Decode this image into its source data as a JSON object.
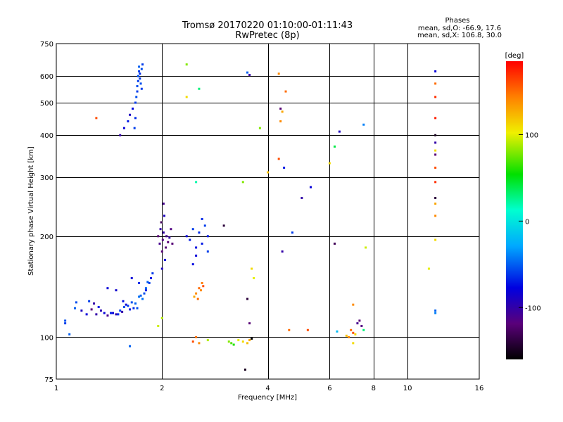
{
  "chart_data": {
    "type": "scatter",
    "title": "Tromsø 20170220 01:10:00-01:11:43",
    "subtitle": "RwPretec (8p)",
    "xlabel": "Frequency [MHz]",
    "ylabel": "Stationary phase Virtual Height [km]",
    "x_scale": "log",
    "y_scale": "log",
    "xlim": [
      1,
      16
    ],
    "ylim": [
      75,
      750
    ],
    "x_ticks": [
      1,
      2,
      4,
      6,
      8,
      10,
      16
    ],
    "x_tick_labels": [
      "1",
      "2",
      "4",
      "6",
      "8",
      "10",
      "16"
    ],
    "y_ticks": [
      75,
      100,
      200,
      300,
      400,
      500,
      600,
      750
    ],
    "y_tick_labels": [
      "75",
      "100",
      "200",
      "300",
      "400",
      "500",
      "600",
      "750"
    ],
    "grid": true,
    "info": {
      "heading": "Phases",
      "line1": "mean, sd,O: -66.9, 17.6",
      "line2": "mean, sd,X: 106.8, 30.0"
    },
    "colorbar": {
      "label": "[deg]",
      "ticks": [
        100,
        0,
        -100
      ],
      "tick_labels": [
        "100",
        "0",
        "-100"
      ],
      "range": [
        -160,
        185
      ]
    },
    "series": [
      {
        "points": [
          [
            1.06,
            110,
            -60
          ],
          [
            1.06,
            112,
            -55
          ],
          [
            1.09,
            102,
            -50
          ],
          [
            1.13,
            122,
            -50
          ],
          [
            1.14,
            127,
            -55
          ],
          [
            1.18,
            120,
            -90
          ],
          [
            1.22,
            117,
            -80
          ],
          [
            1.24,
            128,
            -60
          ],
          [
            1.26,
            121,
            -120
          ],
          [
            1.28,
            126,
            -100
          ],
          [
            1.3,
            117,
            -100
          ],
          [
            1.32,
            123,
            -70
          ],
          [
            1.34,
            120,
            -95
          ],
          [
            1.37,
            118,
            -80
          ],
          [
            1.4,
            116,
            -110
          ],
          [
            1.43,
            118,
            -70
          ],
          [
            1.45,
            118,
            -80
          ],
          [
            1.48,
            117,
            -100
          ],
          [
            1.5,
            117,
            -65
          ],
          [
            1.52,
            120,
            -60
          ],
          [
            1.54,
            119,
            -100
          ],
          [
            1.56,
            123,
            -55
          ],
          [
            1.58,
            125,
            -80
          ],
          [
            1.6,
            124,
            -60
          ],
          [
            1.62,
            121,
            -70
          ],
          [
            1.64,
            127,
            -55
          ],
          [
            1.66,
            122,
            -65
          ],
          [
            1.68,
            126,
            -50
          ],
          [
            1.7,
            122,
            -55
          ],
          [
            1.72,
            132,
            -45
          ],
          [
            1.74,
            133,
            -50
          ],
          [
            1.76,
            130,
            -45
          ],
          [
            1.78,
            135,
            -55
          ],
          [
            1.8,
            140,
            -50
          ],
          [
            1.82,
            146,
            -50
          ],
          [
            1.84,
            145,
            -60
          ],
          [
            1.86,
            150,
            -70
          ],
          [
            1.88,
            155,
            -60
          ],
          [
            1.64,
            150,
            -80
          ],
          [
            1.72,
            145,
            -65
          ],
          [
            1.8,
            138,
            -70
          ],
          [
            1.4,
            140,
            -80
          ],
          [
            1.48,
            138,
            -85
          ],
          [
            1.55,
            128,
            -75
          ],
          [
            1.52,
            400,
            -100
          ],
          [
            1.56,
            420,
            -80
          ],
          [
            1.6,
            440,
            -70
          ],
          [
            1.62,
            460,
            -90
          ],
          [
            1.65,
            480,
            -75
          ],
          [
            1.67,
            420,
            -60
          ],
          [
            1.68,
            450,
            -65
          ],
          [
            1.68,
            500,
            -60
          ],
          [
            1.69,
            520,
            -55
          ],
          [
            1.7,
            540,
            -60
          ],
          [
            1.7,
            560,
            -55
          ],
          [
            1.71,
            580,
            -60
          ],
          [
            1.71,
            600,
            -55
          ],
          [
            1.72,
            620,
            -60
          ],
          [
            1.72,
            640,
            -50
          ],
          [
            1.73,
            610,
            -65
          ],
          [
            1.73,
            590,
            -60
          ],
          [
            1.74,
            570,
            -55
          ],
          [
            1.75,
            550,
            -60
          ],
          [
            1.75,
            630,
            -55
          ],
          [
            1.76,
            650,
            -60
          ],
          [
            1.3,
            450,
            160
          ],
          [
            1.62,
            94,
            -50
          ],
          [
            1.95,
            200,
            -120
          ],
          [
            1.97,
            190,
            -110
          ],
          [
            1.98,
            210,
            -100
          ],
          [
            1.99,
            220,
            -130
          ],
          [
            2.0,
            180,
            -120
          ],
          [
            2.01,
            195,
            -115
          ],
          [
            2.02,
            205,
            -100
          ],
          [
            2.03,
            230,
            -90
          ],
          [
            2.04,
            170,
            -80
          ],
          [
            2.05,
            185,
            -120
          ],
          [
            2.06,
            200,
            -110
          ],
          [
            2.08,
            192,
            -120
          ],
          [
            2.1,
            198,
            -100
          ],
          [
            2.12,
            210,
            -115
          ],
          [
            2.14,
            190,
            -120
          ],
          [
            2.02,
            250,
            -110
          ],
          [
            2.0,
            160,
            -90
          ],
          [
            2.35,
            200,
            -80
          ],
          [
            2.4,
            195,
            -70
          ],
          [
            2.45,
            210,
            -60
          ],
          [
            2.5,
            185,
            -75
          ],
          [
            2.55,
            205,
            -65
          ],
          [
            2.6,
            190,
            -70
          ],
          [
            2.65,
            215,
            -60
          ],
          [
            2.7,
            200,
            -70
          ],
          [
            2.5,
            175,
            -80
          ],
          [
            2.6,
            225,
            -65
          ],
          [
            2.45,
            165,
            -75
          ],
          [
            2.7,
            180,
            -60
          ],
          [
            2.5,
            135,
            140
          ],
          [
            2.55,
            140,
            150
          ],
          [
            2.6,
            145,
            145
          ],
          [
            2.53,
            130,
            150
          ],
          [
            2.58,
            138,
            140
          ],
          [
            2.62,
            142,
            160
          ],
          [
            2.47,
            132,
            130
          ],
          [
            2.0,
            114,
            90
          ],
          [
            1.95,
            108,
            95
          ],
          [
            2.35,
            650,
            80
          ],
          [
            2.35,
            520,
            110
          ],
          [
            2.55,
            550,
            30
          ],
          [
            2.5,
            290,
            20
          ],
          [
            3.0,
            215,
            -140
          ],
          [
            2.5,
            100,
            150
          ],
          [
            2.55,
            96,
            140
          ],
          [
            2.45,
            97,
            160
          ],
          [
            2.7,
            98,
            90
          ],
          [
            3.1,
            97,
            80
          ],
          [
            3.15,
            96,
            70
          ],
          [
            3.2,
            95,
            60
          ],
          [
            3.3,
            98,
            100
          ],
          [
            3.4,
            97,
            110
          ],
          [
            3.5,
            96,
            120
          ],
          [
            3.55,
            98,
            130
          ],
          [
            3.6,
            99,
            -160
          ],
          [
            3.45,
            80,
            -150
          ],
          [
            3.5,
            130,
            -140
          ],
          [
            3.55,
            110,
            -120
          ],
          [
            3.6,
            160,
            110
          ],
          [
            3.65,
            150,
            100
          ],
          [
            3.4,
            290,
            80
          ],
          [
            3.5,
            615,
            -50
          ],
          [
            3.55,
            605,
            -100
          ],
          [
            3.8,
            420,
            80
          ],
          [
            4.0,
            310,
            120
          ],
          [
            4.3,
            610,
            140
          ],
          [
            4.35,
            480,
            -120
          ],
          [
            4.4,
            470,
            130
          ],
          [
            4.5,
            540,
            150
          ],
          [
            4.35,
            440,
            140
          ],
          [
            4.45,
            320,
            -70
          ],
          [
            4.3,
            340,
            160
          ],
          [
            4.4,
            180,
            -100
          ],
          [
            4.6,
            105,
            150
          ],
          [
            4.7,
            205,
            -60
          ],
          [
            5.0,
            260,
            -100
          ],
          [
            5.2,
            105,
            160
          ],
          [
            5.3,
            280,
            -80
          ],
          [
            6.0,
            330,
            110
          ],
          [
            6.2,
            370,
            40
          ],
          [
            6.4,
            410,
            -90
          ],
          [
            6.2,
            190,
            -130
          ],
          [
            6.3,
            104,
            -20
          ],
          [
            6.7,
            101,
            120
          ],
          [
            6.8,
            100,
            140
          ],
          [
            6.9,
            105,
            150
          ],
          [
            7.0,
            103,
            160
          ],
          [
            7.1,
            102,
            110
          ],
          [
            7.0,
            125,
            140
          ],
          [
            7.2,
            110,
            -110
          ],
          [
            7.3,
            112,
            -120
          ],
          [
            7.4,
            108,
            -115
          ],
          [
            7.5,
            105,
            30
          ],
          [
            7.6,
            185,
            95
          ],
          [
            7.5,
            430,
            -40
          ],
          [
            7.0,
            96,
            110
          ],
          [
            11.5,
            160,
            100
          ],
          [
            12.0,
            620,
            -80
          ],
          [
            12.0,
            570,
            150
          ],
          [
            12.0,
            520,
            170
          ],
          [
            12.0,
            450,
            175
          ],
          [
            12.0,
            400,
            -150
          ],
          [
            12.0,
            380,
            -100
          ],
          [
            12.0,
            350,
            -120
          ],
          [
            12.0,
            320,
            160
          ],
          [
            12.0,
            290,
            170
          ],
          [
            12.0,
            260,
            -140
          ],
          [
            12.0,
            230,
            140
          ],
          [
            12.0,
            195,
            110
          ],
          [
            12.0,
            120,
            -50
          ],
          [
            12.0,
            118,
            -40
          ],
          [
            12.0,
            360,
            110
          ],
          [
            12.0,
            250,
            130
          ]
        ]
      }
    ]
  }
}
